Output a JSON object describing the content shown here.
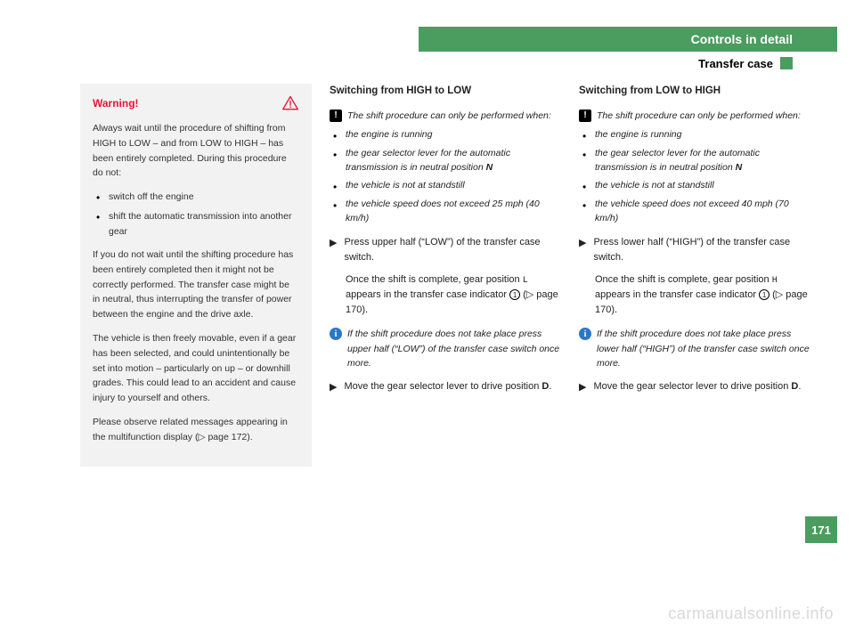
{
  "header": {
    "title": "Controls in detail",
    "subtitle": "Transfer case"
  },
  "warning": {
    "label": "Warning!",
    "p1": "Always wait until the procedure of shifting from HIGH to LOW – and from LOW to HIGH – has been entirely completed. During this procedure do not:",
    "bullets": [
      "switch off the engine",
      "shift the automatic transmission into another gear"
    ],
    "p2": "If you do not wait until the shifting procedure has been entirely completed then it might not be correctly performed. The transfer case might be in neutral, thus interrupting the transfer of power between the engine and the drive axle.",
    "p3": "The vehicle is then freely movable, even if a gear has been selected, and could unintentionally be set into motion – particularly on up – or downhill grades. This could lead to an accident and cause injury to yourself and others.",
    "p4": "Please observe related messages appearing in the multifunction display (▷ page 172)."
  },
  "col2": {
    "title": "Switching from HIGH to LOW",
    "note1": "The shift procedure can only be performed when:",
    "bullets": [
      "the engine is running",
      "the gear selector lever for the automatic transmission is in neutral position <b>N</b>",
      "the vehicle is not at standstill",
      "the vehicle speed does not exceed 25 mph (40 km/h)"
    ],
    "step1": "Press upper half (“LOW”) of the transfer case switch.",
    "step1sub_a": "Once the shift is complete, gear position ",
    "step1sub_gear": "L",
    "step1sub_b": " appears in the transfer case indicator ",
    "step1sub_c": " (▷ page 170).",
    "info": "If the shift procedure does not take place press upper half (“LOW”) of the transfer case switch once more.",
    "step2_a": "Move the gear selector lever to drive position ",
    "step2_b": "D",
    "step2_c": "."
  },
  "col3": {
    "title": "Switching from LOW to HIGH",
    "note1": "The shift procedure can only be performed when:",
    "bullets": [
      "the engine is running",
      "the gear selector lever for the automatic transmission is in neutral position <b>N</b>",
      "the vehicle is not at standstill",
      "the vehicle speed does not exceed 40 mph (70 km/h)"
    ],
    "step1": "Press lower half (“HIGH”) of the transfer case switch.",
    "step1sub_a": "Once the shift is complete, gear position ",
    "step1sub_gear": "H",
    "step1sub_b": " appears in the transfer case indicator ",
    "step1sub_c": " (▷ page 170).",
    "info": "If the shift procedure does not take place press lower half (“HIGH”) of the transfer case switch once more.",
    "step2_a": "Move the gear selector lever to drive position ",
    "step2_b": "D",
    "step2_c": "."
  },
  "page_number": "171",
  "watermark": "carmanualsonline.info",
  "colors": {
    "brand": "#4a9d5f",
    "warn": "#ee1133",
    "info": "#2b78c4"
  }
}
